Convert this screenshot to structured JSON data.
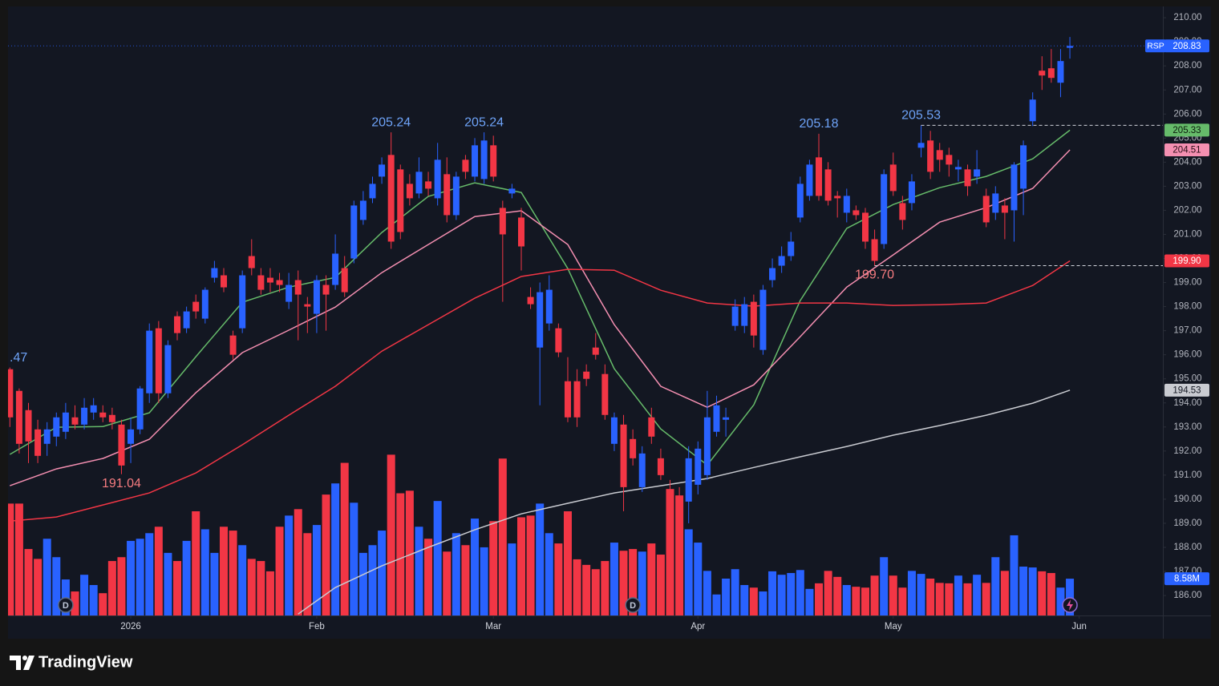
{
  "chart_data": {
    "type": "candlestick",
    "symbol": "RSP",
    "up_color": "#2962ff",
    "down_color": "#f23645",
    "grid": false,
    "xlim": [
      -0.2,
      124
    ],
    "xticks": [
      {
        "value": 13,
        "label": "2026"
      },
      {
        "value": 33,
        "label": "Feb"
      },
      {
        "value": 52,
        "label": "Mar"
      },
      {
        "value": 74,
        "label": "Apr"
      },
      {
        "value": 95,
        "label": "May"
      },
      {
        "value": 115,
        "label": "Jun"
      }
    ],
    "ylim": [
      185.17,
      210.47
    ],
    "yticks": [
      {
        "value": 186,
        "label": "186.00"
      },
      {
        "value": 187,
        "label": "187.00"
      },
      {
        "value": 188,
        "label": "188.00"
      },
      {
        "value": 189,
        "label": "189.00"
      },
      {
        "value": 190,
        "label": "190.00"
      },
      {
        "value": 191,
        "label": "191.00"
      },
      {
        "value": 192,
        "label": "192.00"
      },
      {
        "value": 193,
        "label": "193.00"
      },
      {
        "value": 194,
        "label": "194.00"
      },
      {
        "value": 195,
        "label": "195.00"
      },
      {
        "value": 196,
        "label": "196.00"
      },
      {
        "value": 197,
        "label": "197.00"
      },
      {
        "value": 198,
        "label": "198.00"
      },
      {
        "value": 199,
        "label": "199.00"
      },
      {
        "value": 200,
        "label": "200.00"
      },
      {
        "value": 201,
        "label": "201.00"
      },
      {
        "value": 202,
        "label": "202.00"
      },
      {
        "value": 203,
        "label": "203.00"
      },
      {
        "value": 204,
        "label": "204.00"
      },
      {
        "value": 205,
        "label": "205.00"
      },
      {
        "value": 206,
        "label": "206.00"
      },
      {
        "value": 207,
        "label": "207.00"
      },
      {
        "value": 208,
        "label": "208.00"
      },
      {
        "value": 209,
        "label": "209.00"
      },
      {
        "value": 210,
        "label": "210.00"
      }
    ],
    "open": [
      195.4,
      194.5,
      193.7,
      192.9,
      192.3,
      192.6,
      192.8,
      193.4,
      193.1,
      193.6,
      193.6,
      193.5,
      193.1,
      192.3,
      192.9,
      194.4,
      197.1,
      194.4,
      197.6,
      197.1,
      198.2,
      197.5,
      199.2,
      199.3,
      196.8,
      197.1,
      200.1,
      199.3,
      199.2,
      199.1,
      198.2,
      199.1,
      198.1,
      197.7,
      198.9,
      198.9,
      199.6,
      200.0,
      201.6,
      202.5,
      203.4,
      204.3,
      203.7,
      203.1,
      202.7,
      203.2,
      202.5,
      203.5,
      201.8,
      204.1,
      203.4,
      203.3,
      204.7,
      202.1,
      202.7,
      201.7,
      198.4,
      196.3,
      197.3,
      197.1,
      194.9,
      194.9,
      195.3,
      196.3,
      195.2,
      192.3,
      193.1,
      192.5,
      190.5,
      193.4,
      191.7,
      190.4,
      190.1,
      189.9,
      190.6,
      191.0,
      192.8,
      193.3,
      197.2,
      197.2,
      198.2,
      196.2,
      199.1,
      199.7,
      200.1,
      201.7,
      202.6,
      204.2,
      203.7,
      202.6,
      201.9,
      202.0,
      201.9,
      200.8,
      200.6,
      203.9,
      202.3,
      202.3,
      204.6,
      204.9,
      204.5,
      204.3,
      203.7,
      203.7,
      203.4,
      202.6,
      201.9,
      202.2,
      202.0,
      202.9,
      205.7,
      207.8,
      207.9,
      207.3,
      208.75
    ],
    "high": [
      195.47,
      194.6,
      194.0,
      193.3,
      193.2,
      193.6,
      194.0,
      193.9,
      194.2,
      194.2,
      193.9,
      193.8,
      193.3,
      193.4,
      194.7,
      197.3,
      197.4,
      196.6,
      197.8,
      198.0,
      198.5,
      198.8,
      199.9,
      199.6,
      197.0,
      199.5,
      200.8,
      199.6,
      199.6,
      199.4,
      199.4,
      199.5,
      198.4,
      199.3,
      199.3,
      201.0,
      200.1,
      202.4,
      202.8,
      203.4,
      204.2,
      205.24,
      203.9,
      203.5,
      204.2,
      203.6,
      204.8,
      204.2,
      203.6,
      204.3,
      205.0,
      205.24,
      205.1,
      202.4,
      203.1,
      202.1,
      198.8,
      199.0,
      199.3,
      197.3,
      195.9,
      195.4,
      195.6,
      196.9,
      195.6,
      193.6,
      193.5,
      192.9,
      192.2,
      193.8,
      192.1,
      190.8,
      190.5,
      192.2,
      192.4,
      194.5,
      194.3,
      193.8,
      198.3,
      198.4,
      198.5,
      198.9,
      200.0,
      200.5,
      201.1,
      203.4,
      204.1,
      205.18,
      204.0,
      202.8,
      202.9,
      202.2,
      202.1,
      201.2,
      203.7,
      204.4,
      202.6,
      203.5,
      205.53,
      205.3,
      204.8,
      204.6,
      204.1,
      203.9,
      204.5,
      202.9,
      203.0,
      202.5,
      204.0,
      204.9,
      206.9,
      208.4,
      208.7,
      208.7,
      209.2
    ],
    "low": [
      193.0,
      191.9,
      191.5,
      191.5,
      191.8,
      192.2,
      192.5,
      192.9,
      192.9,
      193.3,
      193.2,
      192.9,
      191.04,
      191.5,
      192.7,
      194.0,
      194.0,
      194.2,
      196.6,
      196.9,
      197.5,
      197.3,
      199.0,
      198.6,
      195.8,
      196.9,
      199.3,
      198.5,
      198.6,
      198.6,
      197.9,
      196.6,
      196.9,
      196.9,
      197.0,
      198.7,
      198.4,
      199.8,
      201.4,
      202.3,
      203.1,
      200.4,
      200.8,
      202.2,
      202.5,
      202.6,
      202.2,
      201.5,
      201.6,
      203.3,
      203.2,
      203.1,
      203.2,
      198.2,
      202.5,
      199.5,
      197.9,
      193.9,
      197.0,
      195.9,
      193.2,
      193.0,
      194.7,
      195.8,
      193.3,
      192.0,
      189.5,
      191.4,
      190.3,
      192.3,
      190.8,
      187.9,
      187.4,
      189.0,
      190.2,
      190.8,
      192.6,
      192.6,
      197.0,
      196.9,
      196.3,
      196.0,
      198.8,
      199.4,
      199.9,
      201.5,
      202.4,
      202.4,
      202.2,
      201.7,
      201.5,
      201.6,
      200.4,
      199.7,
      200.4,
      202.6,
      201.2,
      202.0,
      204.2,
      203.3,
      203.6,
      203.4,
      203.2,
      202.6,
      203.1,
      201.3,
      201.6,
      200.8,
      200.7,
      201.8,
      205.5,
      207.0,
      207.3,
      206.7,
      208.3
    ],
    "close": [
      193.4,
      192.3,
      192.4,
      191.8,
      192.9,
      193.4,
      193.6,
      193.1,
      193.8,
      193.9,
      193.4,
      193.2,
      191.4,
      192.9,
      194.6,
      197.0,
      194.4,
      196.4,
      196.9,
      197.8,
      197.8,
      198.7,
      199.6,
      198.8,
      196.0,
      199.3,
      199.6,
      198.7,
      199.0,
      198.9,
      198.9,
      198.5,
      198.0,
      199.1,
      198.5,
      200.2,
      198.6,
      202.2,
      202.4,
      203.1,
      203.9,
      200.7,
      201.1,
      202.5,
      203.6,
      202.9,
      204.1,
      201.8,
      203.4,
      203.6,
      204.7,
      204.9,
      203.4,
      201.0,
      202.9,
      200.5,
      198.1,
      198.6,
      198.7,
      196.1,
      193.4,
      193.4,
      195.0,
      196.0,
      193.5,
      193.4,
      190.5,
      191.7,
      191.9,
      192.6,
      191.0,
      188.4,
      187.9,
      191.7,
      192.1,
      193.4,
      193.9,
      193.4,
      198.0,
      198.1,
      196.8,
      198.7,
      199.6,
      200.1,
      200.7,
      203.1,
      203.9,
      202.6,
      202.4,
      202.5,
      202.6,
      201.8,
      200.7,
      199.9,
      203.5,
      202.8,
      201.6,
      203.2,
      204.8,
      203.6,
      204.1,
      203.9,
      203.8,
      203.0,
      203.7,
      201.5,
      202.7,
      201.9,
      203.9,
      204.7,
      206.6,
      207.6,
      207.5,
      208.2,
      208.83
    ],
    "volume": {
      "ylim": [
        0,
        40
      ],
      "last_label": "8.58M",
      "values": [
        26.1,
        26.1,
        15.5,
        13.2,
        17.9,
        13.6,
        8.4,
        5.6,
        9.5,
        7.1,
        5.2,
        12.7,
        13.6,
        17.4,
        17.9,
        19.2,
        20.7,
        14.6,
        12.7,
        17.4,
        24.3,
        20.1,
        14.6,
        20.7,
        19.8,
        16.4,
        13.2,
        12.7,
        10.3,
        20.7,
        23.3,
        24.8,
        19.2,
        21.1,
        28.2,
        30.8,
        35.6,
        26.3,
        14.6,
        16.4,
        19.8,
        37.5,
        28.5,
        29.1,
        20.7,
        17.9,
        26.7,
        14.9,
        19.2,
        16.4,
        22.6,
        15.9,
        22.0,
        36.6,
        16.8,
        22.9,
        23.3,
        26.1,
        19.2,
        16.8,
        24.3,
        13.1,
        11.8,
        10.8,
        12.7,
        17.0,
        15.1,
        15.5,
        14.9,
        16.8,
        14.2,
        29.5,
        28.0,
        20.1,
        17.0,
        10.4,
        4.9,
        8.6,
        10.8,
        7.1,
        6.5,
        5.6,
        10.3,
        9.5,
        9.9,
        10.6,
        6.2,
        7.5,
        10.4,
        9.0,
        7.1,
        6.7,
        6.5,
        9.3,
        13.6,
        9.3,
        6.5,
        10.4,
        9.7,
        8.6,
        7.6,
        7.5,
        9.3,
        7.5,
        9.5,
        7.6,
        13.6,
        10.4,
        18.7,
        11.4,
        11.2,
        10.3,
        9.9,
        6.5,
        8.58
      ]
    },
    "moving_averages": [
      {
        "color": "#66bb6a",
        "label_text_color": "#0b1a0c",
        "last_label": "205.33",
        "x": [
          0,
          5,
          10,
          15,
          20,
          25,
          30,
          35,
          40,
          45,
          50,
          55,
          60,
          65,
          70,
          75,
          80,
          85,
          90,
          95,
          100,
          105,
          110,
          114
        ],
        "values": [
          191.86,
          192.99,
          193.02,
          193.59,
          195.92,
          198.18,
          198.81,
          199.21,
          201.08,
          202.58,
          203.14,
          202.74,
          199.58,
          195.42,
          192.92,
          191.42,
          193.92,
          198.25,
          201.25,
          202.24,
          202.94,
          203.41,
          204.14,
          205.33
        ]
      },
      {
        "color": "#f48fb1",
        "label_text_color": "#2a0d16",
        "last_label": "204.51",
        "x": [
          0,
          5,
          10,
          15,
          20,
          25,
          30,
          35,
          40,
          45,
          50,
          55,
          60,
          65,
          70,
          75,
          80,
          85,
          90,
          95,
          100,
          105,
          110,
          114
        ],
        "values": [
          190.56,
          191.26,
          191.69,
          192.49,
          194.42,
          196.09,
          197.02,
          197.98,
          199.41,
          200.58,
          201.74,
          201.98,
          200.58,
          197.25,
          194.69,
          193.82,
          194.75,
          196.75,
          198.81,
          200.15,
          201.51,
          202.11,
          202.91,
          204.51
        ]
      },
      {
        "color": "#f23645",
        "label_text_color": "#ffffff",
        "last_label": "199.90",
        "x": [
          0,
          5,
          10,
          15,
          20,
          25,
          30,
          35,
          40,
          45,
          50,
          55,
          60,
          65,
          70,
          75,
          80,
          85,
          90,
          95,
          100,
          105,
          110,
          114
        ],
        "values": [
          189.09,
          189.26,
          189.76,
          190.26,
          191.09,
          192.26,
          193.49,
          194.69,
          196.15,
          197.25,
          198.35,
          199.25,
          199.55,
          199.51,
          198.68,
          198.15,
          198.02,
          198.15,
          198.15,
          198.05,
          198.08,
          198.15,
          198.88,
          199.9
        ]
      },
      {
        "color": "#c9cbd1",
        "label_text_color": "#131722",
        "last_label": "194.53",
        "x": [
          31,
          35,
          40,
          45,
          50,
          55,
          60,
          65,
          70,
          75,
          80,
          85,
          90,
          95,
          100,
          105,
          110,
          114
        ],
        "values": [
          185.23,
          186.33,
          187.23,
          188.0,
          188.73,
          189.39,
          189.83,
          190.26,
          190.56,
          190.86,
          191.32,
          191.76,
          192.19,
          192.66,
          193.06,
          193.49,
          193.99,
          194.53
        ]
      }
    ],
    "annotations": [
      {
        "label": ".47",
        "candle": 0,
        "at": "high"
      },
      {
        "label": "191.04",
        "candle": 12,
        "at": "low"
      },
      {
        "label": "205.24",
        "candle": 41,
        "at": "high"
      },
      {
        "label": "205.24",
        "candle": 51,
        "at": "high"
      },
      {
        "label": "205.18",
        "candle": 87,
        "at": "high"
      },
      {
        "label": "205.53",
        "candle": 98,
        "at": "high",
        "dashed": true
      },
      {
        "label": "199.70",
        "candle": 93,
        "at": "low",
        "dashed": true
      }
    ],
    "dividend_markers": [
      "D",
      "D"
    ]
  },
  "brand": "TradingView"
}
